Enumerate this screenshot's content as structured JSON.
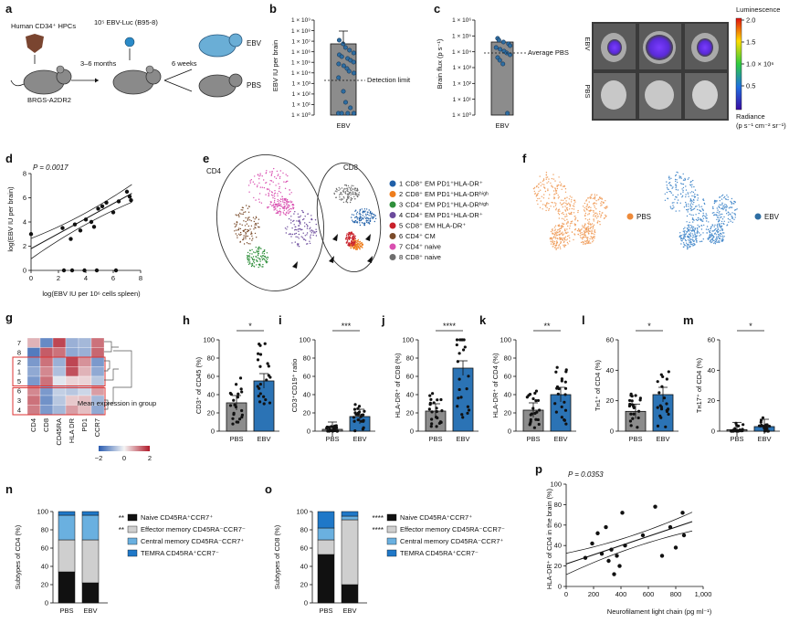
{
  "panels": {
    "a": {
      "label": "a",
      "hpc": "Human CD34⁺ HPCs",
      "ebv_dose": "10⁵ EBV-Luc (B95-8)",
      "months": "3–6 months",
      "weeks": "6 weeks",
      "mouse": "BRGS-A2DR2",
      "ebv": "EBV",
      "pbs": "PBS"
    },
    "b": {
      "label": "b",
      "ylabel": "EBV IU per brain",
      "xlabel": "EBV",
      "detection": "Detection limit",
      "ticks": [
        "1 × 10⁰",
        "1 × 10¹",
        "1 × 10²",
        "1 × 10³",
        "1 × 10⁴",
        "1 × 10⁵",
        "1 × 10⁶",
        "1 × 10⁷",
        "1 × 10⁸",
        "1 × 10⁹"
      ]
    },
    "c": {
      "label": "c",
      "ylabel": "Brain flux (p s⁻¹)",
      "xlabel": "EBV",
      "avg": "Average PBS",
      "ticks": [
        "1 × 10⁰",
        "1 × 10¹",
        "1 × 10²",
        "1 × 10³",
        "1 × 10⁴",
        "1 × 10⁵",
        "1 × 10⁶"
      ],
      "row_ebv": "EBV",
      "row_pbs": "PBS",
      "lum": "Luminescence",
      "rad": "Radiance",
      "rad_unit": "(p s⁻¹ cm⁻² sr⁻¹)",
      "cb_ticks": [
        "2.0",
        "1.5",
        "1.0 × 10⁶",
        "0.5"
      ]
    },
    "d": {
      "label": "d",
      "p": "P = 0.0017",
      "ylabel": "log(EBV IU per brain)",
      "xlabel": "log(EBV IU per 10⁶ cells spleen)",
      "xticks": [
        "0",
        "2",
        "4",
        "6",
        "8"
      ],
      "yticks": [
        "0",
        "2",
        "4",
        "6",
        "8"
      ]
    },
    "e": {
      "label": "e",
      "cd4": "CD4",
      "cd8": "CD8",
      "legend": [
        {
          "n": "1",
          "t": "CD8⁺ EM PD1⁺HLA-DR⁺",
          "c": "#1f5fa8"
        },
        {
          "n": "2",
          "t": "CD8⁺ EM PD1⁺HLA-DRʰⁱᵍʰ",
          "c": "#ee7d1c"
        },
        {
          "n": "3",
          "t": "CD4⁺ EM PD1⁺HLA-DRʰⁱᵍʰ",
          "c": "#2f8f3b"
        },
        {
          "n": "4",
          "t": "CD4⁺ EM PD1⁺HLA-DR⁺",
          "c": "#6b4a9c"
        },
        {
          "n": "5",
          "t": "CD8⁺ EM HLA-DR⁺",
          "c": "#c9202a"
        },
        {
          "n": "6",
          "t": "CD4⁺ CM",
          "c": "#7a4b2a"
        },
        {
          "n": "7",
          "t": "CD4⁺ naive",
          "c": "#d94fb0"
        },
        {
          "n": "8",
          "t": "CD8⁺ naive",
          "c": "#6e6e6e"
        }
      ]
    },
    "f": {
      "label": "f",
      "pbs": "PBS",
      "ebv": "EBV",
      "pbs_color": "#f0a060",
      "ebv_color": "#4a8ccc"
    },
    "g": {
      "label": "g",
      "rows": [
        "7",
        "8",
        "2",
        "1",
        "5",
        "6",
        "3",
        "4"
      ],
      "cols": [
        "CD4",
        "CD8",
        "CD45RA",
        "HLA DR",
        "PD1",
        "CCR7"
      ],
      "legend_title": "Mean expression in group",
      "cb_ticks": [
        "−2",
        "0",
        "2"
      ]
    },
    "h": {
      "label": "h",
      "ylabel": "CD3⁺ of CD45 (%)",
      "sig": "*",
      "yticks": [
        "0",
        "20",
        "40",
        "60",
        "80",
        "100"
      ],
      "ymax": 100,
      "groups": [
        {
          "name": "PBS",
          "mean": 31
        },
        {
          "name": "EBV",
          "mean": 55
        }
      ]
    },
    "i": {
      "label": "i",
      "ylabel": "CD3⁺CD19⁺ ratio",
      "sig": "***",
      "yticks": [
        "0",
        "20",
        "40",
        "60",
        "80",
        "100"
      ],
      "ymax": 100,
      "groups": [
        {
          "name": "PBS",
          "mean": 2
        },
        {
          "name": "EBV",
          "mean": 16
        }
      ]
    },
    "j": {
      "label": "j",
      "ylabel": "HLA-DR⁺ of CD8 (%)",
      "sig": "****",
      "yticks": [
        "0",
        "20",
        "40",
        "60",
        "80",
        "100"
      ],
      "ymax": 100,
      "groups": [
        {
          "name": "PBS",
          "mean": 22
        },
        {
          "name": "EBV",
          "mean": 69
        }
      ]
    },
    "k": {
      "label": "k",
      "ylabel": "HLA-DR⁺ of CD4 (%)",
      "sig": "**",
      "yticks": [
        "0",
        "20",
        "40",
        "60",
        "80",
        "100"
      ],
      "ymax": 100,
      "groups": [
        {
          "name": "PBS",
          "mean": 23
        },
        {
          "name": "EBV",
          "mean": 40
        }
      ]
    },
    "l": {
      "label": "l",
      "ylabel": "Tʜ1⁺ of CD4 (%)",
      "sig": "*",
      "yticks": [
        "0",
        "20",
        "40",
        "60"
      ],
      "ymax": 60,
      "groups": [
        {
          "name": "PBS",
          "mean": 13
        },
        {
          "name": "EBV",
          "mean": 24
        }
      ]
    },
    "m": {
      "label": "m",
      "ylabel": "Tʜ17⁺ of CD4 (%)",
      "sig": "*",
      "yticks": [
        "0",
        "20",
        "40",
        "60"
      ],
      "ymax": 60,
      "groups": [
        {
          "name": "PBS",
          "mean": 1
        },
        {
          "name": "EBV",
          "mean": 3
        }
      ]
    },
    "n": {
      "label": "n",
      "ylabel": "Subtypes of CD4 (%)",
      "yticks": [
        "0",
        "20",
        "40",
        "60",
        "80",
        "100"
      ],
      "cats": [
        "PBS",
        "EBV"
      ],
      "segments": [
        {
          "name": "Naive CD45RA⁺CCR7⁺",
          "color": "#111111",
          "values": [
            34,
            22
          ],
          "sig": "**"
        },
        {
          "name": "Effector memory CD45RA⁻CCR7⁻",
          "color": "#cfcfcf",
          "values": [
            35,
            47
          ],
          "sig": "**"
        },
        {
          "name": "Central memory CD45RA⁻CCR7⁺",
          "color": "#6ab0e0",
          "values": [
            27,
            27
          ],
          "sig": ""
        },
        {
          "name": "TEMRA CD45RA⁺CCR7⁻",
          "color": "#1f78c8",
          "values": [
            4,
            4
          ],
          "sig": ""
        }
      ]
    },
    "o": {
      "label": "o",
      "ylabel": "Subtypes of CD8 (%)",
      "yticks": [
        "0",
        "20",
        "40",
        "60",
        "80",
        "100"
      ],
      "cats": [
        "PBS",
        "EBV"
      ],
      "segments": [
        {
          "name": "Naive CD45RA⁺CCR7⁺",
          "color": "#111111",
          "values": [
            53,
            20
          ],
          "sig": "****"
        },
        {
          "name": "Effector memory CD45RA⁻CCR7⁻",
          "color": "#cfcfcf",
          "values": [
            16,
            71
          ],
          "sig": "****"
        },
        {
          "name": "Central memory CD45RA⁻CCR7⁺",
          "color": "#6ab0e0",
          "values": [
            13,
            4
          ],
          "sig": ""
        },
        {
          "name": "TEMRA CD45RA⁺CCR7⁻",
          "color": "#1f78c8",
          "values": [
            18,
            5
          ],
          "sig": ""
        }
      ]
    },
    "p": {
      "label": "p",
      "p": "P = 0.0353",
      "ylabel": "HLA-DR⁺ of CD4 in the brain (%)",
      "xlabel": "Neurofilament light chain (pg ml⁻¹)",
      "xticks": [
        "0",
        "200",
        "400",
        "600",
        "800",
        "1,000"
      ],
      "yticks": [
        "0",
        "20",
        "40",
        "60",
        "80",
        "100"
      ]
    }
  },
  "chart_data": [
    {
      "type": "scatter",
      "panel": "d",
      "x": [
        0,
        2.3,
        2.9,
        3.2,
        3.6,
        4.0,
        4.4,
        4.6,
        4.9,
        5.2,
        5.5,
        6.0,
        6.4,
        7.0,
        7.2,
        7.3,
        2.4,
        3.0,
        3.9,
        4.8,
        6.2
      ],
      "y": [
        3.0,
        3.5,
        2.6,
        3.8,
        3.3,
        4.2,
        4.0,
        3.6,
        5.1,
        5.3,
        5.6,
        4.8,
        5.7,
        6.5,
        6.1,
        5.8,
        0,
        0,
        0,
        0,
        0
      ],
      "xlim": [
        0,
        8
      ],
      "ylim": [
        0,
        8
      ]
    },
    {
      "type": "scatter",
      "panel": "p",
      "x": [
        140,
        190,
        230,
        260,
        290,
        310,
        330,
        350,
        370,
        390,
        410,
        430,
        560,
        650,
        700,
        760,
        800,
        850,
        860
      ],
      "y": [
        28,
        42,
        52,
        32,
        58,
        25,
        36,
        12,
        30,
        20,
        72,
        40,
        50,
        78,
        30,
        58,
        38,
        72,
        50
      ],
      "xlim": [
        0,
        1000
      ],
      "ylim": [
        0,
        100
      ]
    },
    {
      "type": "bar",
      "panel": "h",
      "categories": [
        "PBS",
        "EBV"
      ],
      "values": [
        31,
        55
      ]
    },
    {
      "type": "bar",
      "panel": "i",
      "categories": [
        "PBS",
        "EBV"
      ],
      "values": [
        2,
        16
      ]
    },
    {
      "type": "bar",
      "panel": "j",
      "categories": [
        "PBS",
        "EBV"
      ],
      "values": [
        22,
        69
      ]
    },
    {
      "type": "bar",
      "panel": "k",
      "categories": [
        "PBS",
        "EBV"
      ],
      "values": [
        23,
        40
      ]
    },
    {
      "type": "bar",
      "panel": "l",
      "categories": [
        "PBS",
        "EBV"
      ],
      "values": [
        13,
        24
      ]
    },
    {
      "type": "bar",
      "panel": "m",
      "categories": [
        "PBS",
        "EBV"
      ],
      "values": [
        1,
        3
      ]
    }
  ]
}
